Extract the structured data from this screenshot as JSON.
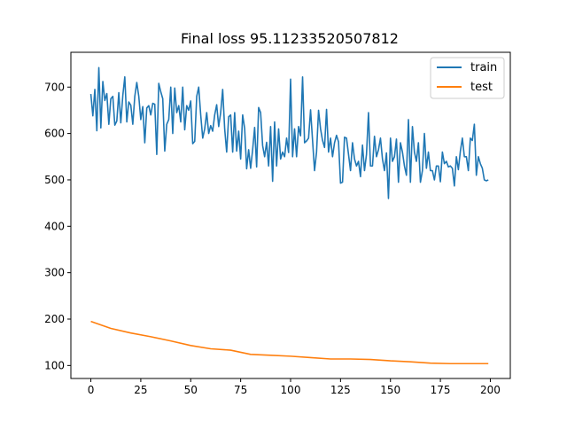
{
  "chart_data": {
    "type": "line",
    "title": "Final loss 95.11233520507812",
    "xlabel": "",
    "ylabel": "",
    "xlim": [
      -10,
      210
    ],
    "ylim": [
      72,
      775
    ],
    "xticks": [
      0,
      25,
      50,
      75,
      100,
      125,
      150,
      175,
      200
    ],
    "yticks": [
      100,
      200,
      300,
      400,
      500,
      600,
      700
    ],
    "legend_position": "top-right",
    "grid": false,
    "series": [
      {
        "name": "train",
        "color": "#1f77b4",
        "x": [
          0,
          1,
          2,
          3,
          4,
          5,
          6,
          7,
          8,
          9,
          10,
          11,
          12,
          13,
          14,
          15,
          16,
          17,
          18,
          19,
          20,
          21,
          22,
          23,
          24,
          25,
          26,
          27,
          28,
          29,
          30,
          31,
          32,
          33,
          34,
          35,
          36,
          37,
          38,
          39,
          40,
          41,
          42,
          43,
          44,
          45,
          46,
          47,
          48,
          49,
          50,
          51,
          52,
          53,
          54,
          55,
          56,
          57,
          58,
          59,
          60,
          61,
          62,
          63,
          64,
          65,
          66,
          67,
          68,
          69,
          70,
          71,
          72,
          73,
          74,
          75,
          76,
          77,
          78,
          79,
          80,
          81,
          82,
          83,
          84,
          85,
          86,
          87,
          88,
          89,
          90,
          91,
          92,
          93,
          94,
          95,
          96,
          97,
          98,
          99,
          100,
          101,
          102,
          103,
          104,
          105,
          106,
          107,
          108,
          109,
          110,
          111,
          112,
          113,
          114,
          115,
          116,
          117,
          118,
          119,
          120,
          121,
          122,
          123,
          124,
          125,
          126,
          127,
          128,
          129,
          130,
          131,
          132,
          133,
          134,
          135,
          136,
          137,
          138,
          139,
          140,
          141,
          142,
          143,
          144,
          145,
          146,
          147,
          148,
          149,
          150,
          151,
          152,
          153,
          154,
          155,
          156,
          157,
          158,
          159,
          160,
          161,
          162,
          163,
          164,
          165,
          166,
          167,
          168,
          169,
          170,
          171,
          172,
          173,
          174,
          175,
          176,
          177,
          178,
          179,
          180,
          181,
          182,
          183,
          184,
          185,
          186,
          187,
          188,
          189,
          190,
          191,
          192,
          193,
          194,
          195,
          196,
          197,
          198,
          199
        ],
        "values": [
          685,
          638,
          695,
          606,
          742,
          612,
          712,
          671,
          686,
          620,
          675,
          680,
          618,
          627,
          688,
          623,
          682,
          722,
          625,
          668,
          661,
          620,
          680,
          710,
          680,
          630,
          658,
          580,
          655,
          660,
          640,
          665,
          663,
          555,
          708,
          690,
          675,
          562,
          620,
          630,
          700,
          600,
          698,
          645,
          660,
          625,
          700,
          608,
          660,
          650,
          670,
          578,
          583,
          680,
          700,
          640,
          590,
          610,
          645,
          600,
          617,
          605,
          640,
          662,
          615,
          645,
          695,
          610,
          560,
          636,
          640,
          560,
          645,
          562,
          605,
          545,
          640,
          611,
          524,
          565,
          525,
          565,
          613,
          528,
          656,
          645,
          574,
          550,
          581,
          530,
          615,
          497,
          625,
          530,
          610,
          545,
          560,
          550,
          590,
          559,
          717,
          550,
          610,
          550,
          615,
          595,
          722,
          580,
          584,
          590,
          651,
          585,
          520,
          560,
          650,
          610,
          585,
          570,
          652,
          560,
          590,
          550,
          580,
          596,
          582,
          493,
          495,
          592,
          590,
          555,
          520,
          580,
          545,
          530,
          540,
          507,
          575,
          520,
          555,
          645,
          530,
          530,
          594,
          550,
          565,
          590,
          545,
          520,
          558,
          460,
          590,
          540,
          550,
          588,
          495,
          580,
          560,
          530,
          510,
          630,
          495,
          615,
          560,
          540,
          580,
          495,
          520,
          600,
          525,
          560,
          520,
          520,
          500,
          530,
          530,
          496,
          560,
          535,
          540,
          528,
          530,
          525,
          487,
          550,
          522,
          562,
          590,
          550,
          550,
          520,
          590,
          585,
          620,
          510,
          550,
          535,
          525,
          500,
          498,
          500
        ],
        "values_note": ""
      },
      {
        "name": "test",
        "color": "#ff7f0e",
        "x": [
          0,
          10,
          20,
          30,
          40,
          50,
          60,
          70,
          80,
          90,
          100,
          110,
          120,
          130,
          140,
          150,
          160,
          170,
          180,
          190,
          199
        ],
        "values": [
          195,
          180,
          170,
          162,
          153,
          143,
          136,
          133,
          124,
          122,
          120,
          117,
          114,
          114,
          113,
          110,
          108,
          105,
          104,
          104,
          104
        ]
      }
    ]
  }
}
